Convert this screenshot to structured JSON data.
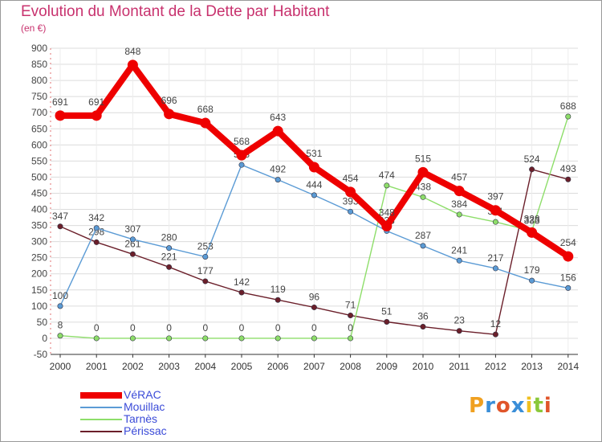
{
  "title": "Evolution du Montant de la Dette par Habitant",
  "unit_label": "(en €)",
  "logo": "Proxiti",
  "chart_data": {
    "type": "line",
    "title": "Evolution du Montant de la Dette par Habitant",
    "ylabel": "(en €)",
    "xlabel": "",
    "x": [
      2000,
      2001,
      2002,
      2003,
      2004,
      2005,
      2006,
      2007,
      2008,
      2009,
      2010,
      2011,
      2012,
      2013,
      2014
    ],
    "ylim": [
      -50,
      900
    ],
    "yticks": [
      -50,
      0,
      50,
      100,
      150,
      200,
      250,
      300,
      350,
      400,
      450,
      500,
      550,
      600,
      650,
      700,
      750,
      800,
      850,
      900
    ],
    "grid": true,
    "legend_position": "bottom-left",
    "series": [
      {
        "name": "VéRAC",
        "color": "#ee0000",
        "values": [
          691,
          691,
          848,
          696,
          668,
          568,
          643,
          531,
          454,
          348,
          515,
          457,
          397,
          328,
          254
        ]
      },
      {
        "name": "Mouillac",
        "color": "#5b9bd5",
        "values": [
          100,
          342,
          307,
          280,
          253,
          538,
          492,
          444,
          393,
          333,
          287,
          241,
          217,
          179,
          156
        ]
      },
      {
        "name": "Tarnès",
        "color": "#8ede6a",
        "values": [
          8,
          0,
          0,
          0,
          0,
          0,
          0,
          0,
          0,
          474,
          438,
          384,
          361,
          333,
          688
        ]
      },
      {
        "name": "Périssac",
        "color": "#6b1f2a",
        "values": [
          347,
          298,
          261,
          221,
          177,
          142,
          119,
          96,
          71,
          51,
          36,
          23,
          12,
          524,
          493
        ]
      }
    ]
  }
}
